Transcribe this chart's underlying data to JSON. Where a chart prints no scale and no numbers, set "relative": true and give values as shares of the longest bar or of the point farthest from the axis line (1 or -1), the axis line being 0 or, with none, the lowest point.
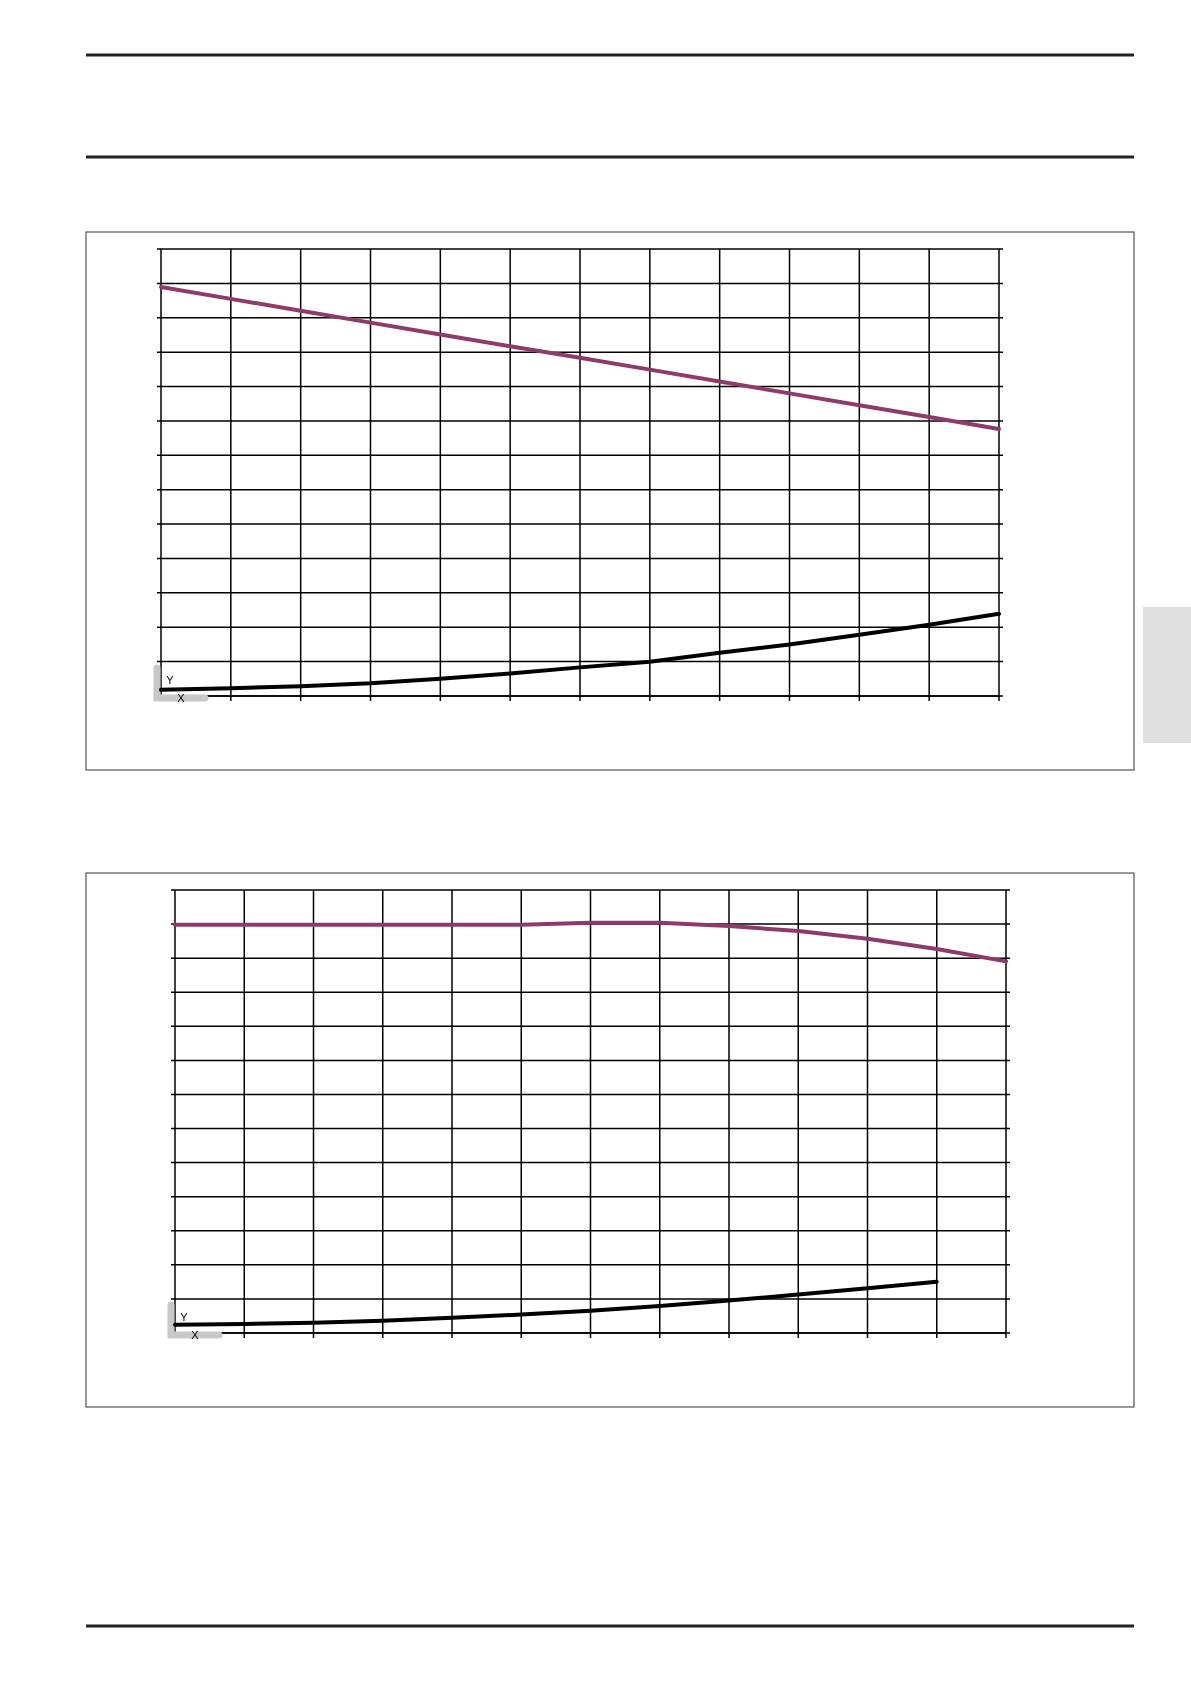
{
  "chart_data": [
    {
      "type": "line",
      "relative": true,
      "grid": true,
      "xlabel": "X",
      "ylabel": "Y",
      "categories": [
        null,
        null,
        null,
        null,
        null,
        null,
        null,
        null,
        null,
        null,
        null,
        null,
        null
      ],
      "series": [
        {
          "color": "#8e3a6a",
          "values": [
            1,
            0.971,
            0.942,
            0.913,
            0.884,
            0.855,
            0.827,
            0.798,
            0.769,
            0.74,
            0.711,
            0.682,
            0.653
          ]
        },
        {
          "color": "#000000",
          "values": [
            0.015,
            0.019,
            0.024,
            0.031,
            0.042,
            0.055,
            0.07,
            0.084,
            0.106,
            0.126,
            0.15,
            0.174,
            0.201
          ]
        }
      ]
    },
    {
      "type": "line",
      "relative": true,
      "grid": true,
      "xlabel": "X",
      "ylabel": "Y",
      "categories": [
        null,
        null,
        null,
        null,
        null,
        null,
        null,
        null,
        null,
        null,
        null,
        null,
        null
      ],
      "series": [
        {
          "color": "#8e3a6a",
          "values": [
            0.995,
            0.995,
            0.995,
            0.995,
            0.995,
            0.995,
            1,
            1,
            0.992,
            0.98,
            0.961,
            0.936,
            0.906
          ]
        },
        {
          "color": "#000000",
          "values": [
            0.02,
            0.022,
            0.025,
            0.03,
            0.037,
            0.045,
            0.054,
            0.066,
            0.079,
            0.094,
            0.109,
            0.125,
            null
          ]
        }
      ]
    }
  ]
}
